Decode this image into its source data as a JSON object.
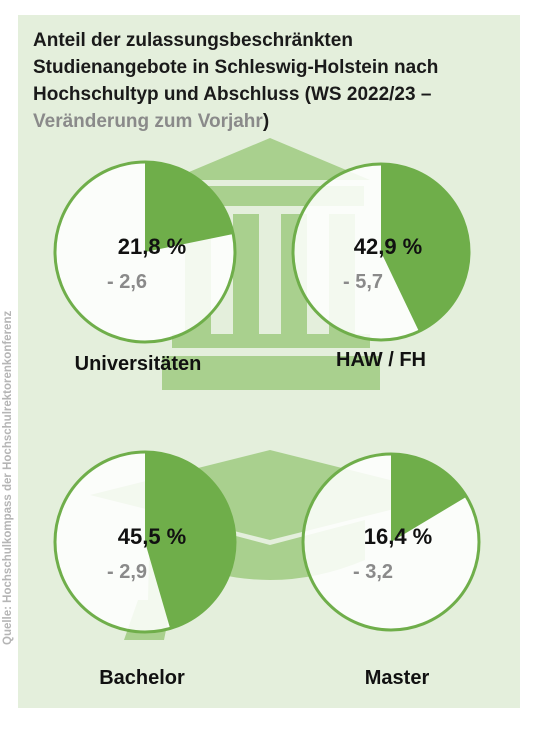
{
  "title": "Anteil der zulassungsbeschränkten Studienangebote in Schleswig-Holstein nach Hochschultyp und Abschluss (WS 2022/23 –",
  "subtitle": "Veränderung zum Vorjahr",
  "title_close": ")",
  "source": "Quelle: Hochschulkompass der Hochschulrektorenkonferenz",
  "colors": {
    "background": "#e4efdc",
    "slice": "#6fae4a",
    "circle_outline": "#6fae4a",
    "icon": "#a9d08e",
    "delta_text": "#8a8a8a"
  },
  "icons": [
    "university-building-icon",
    "graduation-cap-icon"
  ],
  "chart_data": [
    {
      "type": "pie",
      "category": "Universitäten",
      "share_percent": 21.8,
      "share_label": "21,8 %",
      "change": -2.6,
      "change_label": "- 2,6"
    },
    {
      "type": "pie",
      "category": "HAW / FH",
      "share_percent": 42.9,
      "share_label": "42,9 %",
      "change": -5.7,
      "change_label": "- 5,7"
    },
    {
      "type": "pie",
      "category": "Bachelor",
      "share_percent": 45.5,
      "share_label": "45,5 %",
      "change": -2.9,
      "change_label": "- 2,9"
    },
    {
      "type": "pie",
      "category": "Master",
      "share_percent": 16.4,
      "share_label": "16,4 %",
      "change": -3.2,
      "change_label": "- 3,2"
    }
  ]
}
